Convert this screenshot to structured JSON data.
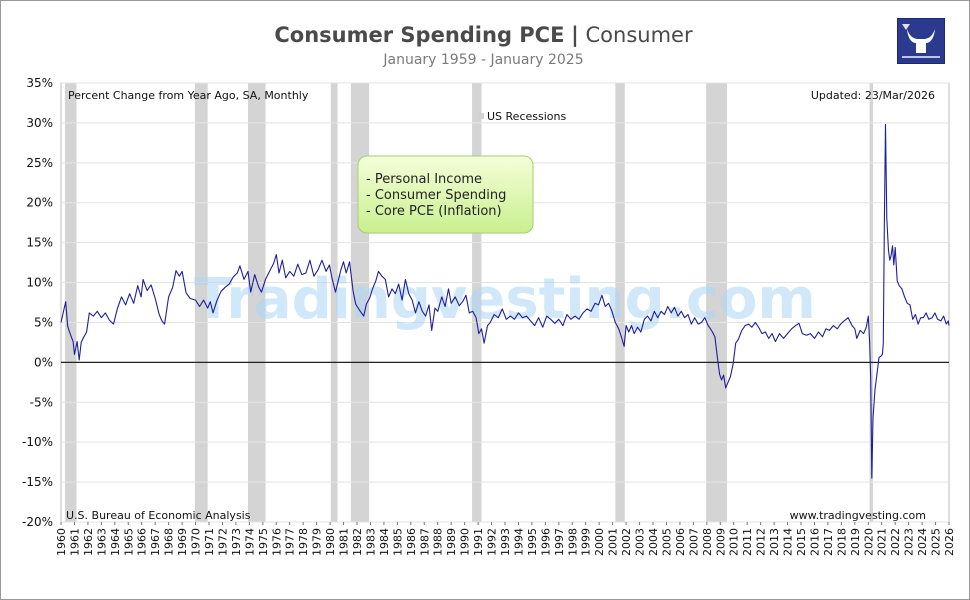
{
  "header": {
    "title_main": "Consumer Spending PCE",
    "title_sep": "|",
    "title_category": "Consumer",
    "subtitle": "January 1959 - January 2025"
  },
  "logo": {
    "icon": "bull-horns-logo-icon",
    "bg_color": "#2b3a8f"
  },
  "chart_data": {
    "type": "line",
    "title": "Consumer Spending PCE",
    "ylabel": "Percent Change from Year Ago, SA, Monthly",
    "xlabel": "",
    "ylim": [
      -20,
      35
    ],
    "xlim": [
      1960,
      2026
    ],
    "y_ticks": [
      35,
      30,
      25,
      20,
      15,
      10,
      5,
      0,
      -5,
      -10,
      -15,
      -20
    ],
    "y_tick_labels": [
      "35%",
      "30%",
      "25%",
      "20%",
      "15%",
      "10%",
      "5%",
      "0%",
      "-5%",
      "-10%",
      "-15%",
      "-20%"
    ],
    "x_ticks": [
      "1960",
      "1961",
      "1962",
      "1963",
      "1964",
      "1965",
      "1966",
      "1967",
      "1968",
      "1969",
      "1970",
      "1971",
      "1972",
      "1973",
      "1974",
      "1975",
      "1976",
      "1977",
      "1978",
      "1979",
      "1980",
      "1981",
      "1982",
      "1983",
      "1984",
      "1985",
      "1986",
      "1987",
      "1988",
      "1989",
      "1990",
      "1991",
      "1992",
      "1993",
      "1994",
      "1995",
      "1996",
      "1997",
      "1998",
      "1999",
      "2000",
      "2001",
      "2002",
      "2003",
      "2004",
      "2005",
      "2006",
      "2007",
      "2008",
      "2009",
      "2010",
      "2011",
      "2012",
      "2013",
      "2014",
      "2015",
      "2016",
      "2017",
      "2018",
      "2019",
      "2020",
      "2021",
      "2022",
      "2023",
      "2024",
      "2025",
      "2026"
    ],
    "grid": true,
    "top_left_note": "Percent Change from Year Ago, SA, Monthly",
    "updated": "Updated: 23/Mar/2026",
    "source": "U.S. Bureau of Economic Analysis",
    "website": "www.tradingvesting.com",
    "watermark": "Tradingvesting.com",
    "recession_legend": "US Recessions",
    "legend_items": [
      "- Personal Income",
      "- Consumer Spending",
      "- Core PCE (Inflation)"
    ],
    "recessions": [
      [
        1960.3,
        1961.15
      ],
      [
        1969.95,
        1970.9
      ],
      [
        1973.9,
        1975.2
      ],
      [
        1980.05,
        1980.55
      ],
      [
        1981.55,
        1982.9
      ],
      [
        1990.55,
        1991.25
      ],
      [
        2001.2,
        2001.9
      ],
      [
        2007.95,
        2009.5
      ],
      [
        2020.1,
        2020.35
      ]
    ],
    "series": [
      {
        "name": "Consumer Spending",
        "color": "#1f1f9c",
        "points": [
          [
            1960.0,
            5.0
          ],
          [
            1960.2,
            6.5
          ],
          [
            1960.35,
            7.6
          ],
          [
            1960.5,
            4.5
          ],
          [
            1960.7,
            3.5
          ],
          [
            1960.9,
            2.6
          ],
          [
            1961.0,
            1.0
          ],
          [
            1961.2,
            2.6
          ],
          [
            1961.35,
            0.3
          ],
          [
            1961.5,
            2.5
          ],
          [
            1961.7,
            3.2
          ],
          [
            1961.9,
            3.8
          ],
          [
            1962.1,
            6.2
          ],
          [
            1962.4,
            5.8
          ],
          [
            1962.7,
            6.4
          ],
          [
            1963.0,
            5.6
          ],
          [
            1963.3,
            6.2
          ],
          [
            1963.6,
            5.3
          ],
          [
            1963.9,
            4.8
          ],
          [
            1964.2,
            6.8
          ],
          [
            1964.5,
            8.2
          ],
          [
            1964.8,
            7.2
          ],
          [
            1965.1,
            8.6
          ],
          [
            1965.4,
            7.4
          ],
          [
            1965.7,
            9.6
          ],
          [
            1965.95,
            8.2
          ],
          [
            1966.1,
            10.4
          ],
          [
            1966.4,
            9.0
          ],
          [
            1966.7,
            9.7
          ],
          [
            1967.0,
            8.0
          ],
          [
            1967.3,
            6.0
          ],
          [
            1967.5,
            5.2
          ],
          [
            1967.7,
            4.8
          ],
          [
            1968.0,
            8.2
          ],
          [
            1968.3,
            9.4
          ],
          [
            1968.55,
            11.5
          ],
          [
            1968.8,
            10.8
          ],
          [
            1969.0,
            11.4
          ],
          [
            1969.3,
            8.7
          ],
          [
            1969.6,
            8.0
          ],
          [
            1970.0,
            7.8
          ],
          [
            1970.3,
            7.0
          ],
          [
            1970.6,
            7.8
          ],
          [
            1970.9,
            6.8
          ],
          [
            1971.1,
            7.6
          ],
          [
            1971.3,
            6.2
          ],
          [
            1971.6,
            7.8
          ],
          [
            1971.9,
            8.9
          ],
          [
            1972.2,
            9.4
          ],
          [
            1972.5,
            9.8
          ],
          [
            1972.8,
            10.7
          ],
          [
            1973.1,
            11.2
          ],
          [
            1973.3,
            12.1
          ],
          [
            1973.6,
            10.4
          ],
          [
            1973.9,
            11.4
          ],
          [
            1974.1,
            8.8
          ],
          [
            1974.4,
            11.0
          ],
          [
            1974.7,
            9.4
          ],
          [
            1974.9,
            8.8
          ],
          [
            1975.2,
            10.4
          ],
          [
            1975.5,
            11.4
          ],
          [
            1975.8,
            12.4
          ],
          [
            1976.0,
            13.5
          ],
          [
            1976.2,
            11.2
          ],
          [
            1976.45,
            12.8
          ],
          [
            1976.7,
            10.6
          ],
          [
            1977.0,
            11.4
          ],
          [
            1977.3,
            10.8
          ],
          [
            1977.6,
            12.3
          ],
          [
            1977.9,
            11.0
          ],
          [
            1978.2,
            11.2
          ],
          [
            1978.5,
            12.8
          ],
          [
            1978.8,
            10.8
          ],
          [
            1979.1,
            11.6
          ],
          [
            1979.4,
            12.8
          ],
          [
            1979.7,
            11.4
          ],
          [
            1979.95,
            12.2
          ],
          [
            1980.15,
            10.5
          ],
          [
            1980.4,
            8.8
          ],
          [
            1980.6,
            10.2
          ],
          [
            1980.8,
            11.6
          ],
          [
            1981.0,
            12.6
          ],
          [
            1981.2,
            11.2
          ],
          [
            1981.45,
            12.6
          ],
          [
            1981.7,
            9.0
          ],
          [
            1981.9,
            7.3
          ],
          [
            1982.2,
            6.5
          ],
          [
            1982.5,
            5.8
          ],
          [
            1982.7,
            7.3
          ],
          [
            1982.95,
            8.1
          ],
          [
            1983.15,
            9.2
          ],
          [
            1983.4,
            10.2
          ],
          [
            1983.6,
            11.4
          ],
          [
            1983.85,
            10.8
          ],
          [
            1984.1,
            10.4
          ],
          [
            1984.35,
            8.2
          ],
          [
            1984.6,
            9.2
          ],
          [
            1984.85,
            8.6
          ],
          [
            1985.1,
            9.8
          ],
          [
            1985.35,
            7.8
          ],
          [
            1985.6,
            10.4
          ],
          [
            1985.85,
            8.6
          ],
          [
            1986.1,
            7.8
          ],
          [
            1986.35,
            6.2
          ],
          [
            1986.6,
            7.6
          ],
          [
            1986.85,
            6.4
          ],
          [
            1987.1,
            5.8
          ],
          [
            1987.35,
            7.2
          ],
          [
            1987.55,
            4.0
          ],
          [
            1987.8,
            6.8
          ],
          [
            1988.0,
            6.4
          ],
          [
            1988.3,
            8.2
          ],
          [
            1988.55,
            7.0
          ],
          [
            1988.8,
            9.2
          ],
          [
            1989.0,
            7.4
          ],
          [
            1989.3,
            8.2
          ],
          [
            1989.6,
            7.1
          ],
          [
            1989.85,
            7.6
          ],
          [
            1990.1,
            8.4
          ],
          [
            1990.35,
            6.2
          ],
          [
            1990.6,
            6.4
          ],
          [
            1990.85,
            5.6
          ],
          [
            1991.05,
            3.6
          ],
          [
            1991.25,
            4.2
          ],
          [
            1991.45,
            2.4
          ],
          [
            1991.7,
            4.6
          ],
          [
            1991.9,
            5.0
          ],
          [
            1992.2,
            6.0
          ],
          [
            1992.5,
            5.6
          ],
          [
            1992.8,
            6.7
          ],
          [
            1993.1,
            5.4
          ],
          [
            1993.4,
            5.8
          ],
          [
            1993.7,
            5.4
          ],
          [
            1994.0,
            6.2
          ],
          [
            1994.3,
            5.6
          ],
          [
            1994.6,
            5.8
          ],
          [
            1994.9,
            5.2
          ],
          [
            1995.2,
            4.6
          ],
          [
            1995.5,
            5.6
          ],
          [
            1995.8,
            4.4
          ],
          [
            1996.1,
            5.8
          ],
          [
            1996.4,
            5.4
          ],
          [
            1996.7,
            4.9
          ],
          [
            1997.0,
            5.4
          ],
          [
            1997.3,
            4.6
          ],
          [
            1997.6,
            6.0
          ],
          [
            1997.9,
            5.4
          ],
          [
            1998.2,
            5.8
          ],
          [
            1998.5,
            5.4
          ],
          [
            1998.8,
            6.2
          ],
          [
            1999.1,
            6.7
          ],
          [
            1999.4,
            6.4
          ],
          [
            1999.7,
            7.4
          ],
          [
            1999.95,
            7.2
          ],
          [
            2000.2,
            8.4
          ],
          [
            2000.45,
            7.0
          ],
          [
            2000.7,
            7.4
          ],
          [
            2000.95,
            6.4
          ],
          [
            2001.2,
            5.0
          ],
          [
            2001.45,
            4.2
          ],
          [
            2001.65,
            3.2
          ],
          [
            2001.85,
            2.0
          ],
          [
            2002.0,
            4.6
          ],
          [
            2002.2,
            3.8
          ],
          [
            2002.4,
            4.6
          ],
          [
            2002.6,
            3.6
          ],
          [
            2002.85,
            4.4
          ],
          [
            2003.1,
            3.8
          ],
          [
            2003.35,
            5.4
          ],
          [
            2003.6,
            5.8
          ],
          [
            2003.85,
            5.2
          ],
          [
            2004.1,
            6.4
          ],
          [
            2004.35,
            5.6
          ],
          [
            2004.6,
            6.4
          ],
          [
            2004.85,
            6.0
          ],
          [
            2005.1,
            7.0
          ],
          [
            2005.35,
            6.2
          ],
          [
            2005.6,
            6.9
          ],
          [
            2005.85,
            5.8
          ],
          [
            2006.1,
            6.4
          ],
          [
            2006.35,
            5.6
          ],
          [
            2006.6,
            6.0
          ],
          [
            2006.85,
            4.8
          ],
          [
            2007.1,
            5.6
          ],
          [
            2007.35,
            4.8
          ],
          [
            2007.6,
            5.0
          ],
          [
            2007.85,
            5.6
          ],
          [
            2008.1,
            4.6
          ],
          [
            2008.35,
            4.0
          ],
          [
            2008.6,
            3.2
          ],
          [
            2008.8,
            0.4
          ],
          [
            2008.95,
            -1.5
          ],
          [
            2009.1,
            -2.2
          ],
          [
            2009.25,
            -1.6
          ],
          [
            2009.4,
            -3.2
          ],
          [
            2009.55,
            -2.6
          ],
          [
            2009.75,
            -1.8
          ],
          [
            2009.95,
            -0.2
          ],
          [
            2010.15,
            2.4
          ],
          [
            2010.35,
            2.9
          ],
          [
            2010.6,
            4.0
          ],
          [
            2010.85,
            4.6
          ],
          [
            2011.1,
            4.8
          ],
          [
            2011.35,
            4.4
          ],
          [
            2011.6,
            5.0
          ],
          [
            2011.85,
            4.4
          ],
          [
            2012.1,
            3.6
          ],
          [
            2012.35,
            3.8
          ],
          [
            2012.6,
            3.0
          ],
          [
            2012.85,
            3.6
          ],
          [
            2013.1,
            2.6
          ],
          [
            2013.4,
            3.6
          ],
          [
            2013.7,
            3.0
          ],
          [
            2014.0,
            3.6
          ],
          [
            2014.3,
            4.2
          ],
          [
            2014.6,
            4.6
          ],
          [
            2014.85,
            4.9
          ],
          [
            2015.1,
            3.6
          ],
          [
            2015.4,
            3.4
          ],
          [
            2015.7,
            3.6
          ],
          [
            2016.0,
            3.0
          ],
          [
            2016.3,
            3.8
          ],
          [
            2016.6,
            3.2
          ],
          [
            2016.85,
            4.2
          ],
          [
            2017.1,
            4.0
          ],
          [
            2017.4,
            4.6
          ],
          [
            2017.7,
            4.2
          ],
          [
            2017.95,
            4.8
          ],
          [
            2018.2,
            5.2
          ],
          [
            2018.5,
            5.6
          ],
          [
            2018.8,
            4.6
          ],
          [
            2019.0,
            4.2
          ],
          [
            2019.15,
            3.0
          ],
          [
            2019.4,
            4.0
          ],
          [
            2019.65,
            3.6
          ],
          [
            2019.85,
            4.4
          ],
          [
            2020.0,
            5.8
          ],
          [
            2020.1,
            2.6
          ],
          [
            2020.18,
            -2.0
          ],
          [
            2020.26,
            -14.5
          ],
          [
            2020.35,
            -7.0
          ],
          [
            2020.5,
            -3.4
          ],
          [
            2020.65,
            -1.4
          ],
          [
            2020.8,
            0.6
          ],
          [
            2020.95,
            0.8
          ],
          [
            2021.05,
            1.0
          ],
          [
            2021.12,
            2.4
          ],
          [
            2021.2,
            18.0
          ],
          [
            2021.28,
            29.8
          ],
          [
            2021.38,
            18.0
          ],
          [
            2021.5,
            14.0
          ],
          [
            2021.6,
            12.8
          ],
          [
            2021.7,
            13.4
          ],
          [
            2021.8,
            14.6
          ],
          [
            2021.9,
            12.2
          ],
          [
            2022.0,
            14.4
          ],
          [
            2022.15,
            10.2
          ],
          [
            2022.3,
            9.6
          ],
          [
            2022.5,
            9.2
          ],
          [
            2022.7,
            8.2
          ],
          [
            2022.9,
            7.4
          ],
          [
            2023.1,
            7.2
          ],
          [
            2023.3,
            5.4
          ],
          [
            2023.5,
            6.0
          ],
          [
            2023.7,
            4.8
          ],
          [
            2023.9,
            5.6
          ],
          [
            2024.1,
            5.6
          ],
          [
            2024.3,
            6.2
          ],
          [
            2024.5,
            5.4
          ],
          [
            2024.75,
            5.6
          ],
          [
            2024.95,
            6.2
          ],
          [
            2025.15,
            5.4
          ],
          [
            2025.4,
            5.2
          ],
          [
            2025.6,
            5.8
          ],
          [
            2025.8,
            4.8
          ],
          [
            2025.95,
            5.2
          ],
          [
            2026.0,
            4.6
          ]
        ]
      }
    ]
  }
}
